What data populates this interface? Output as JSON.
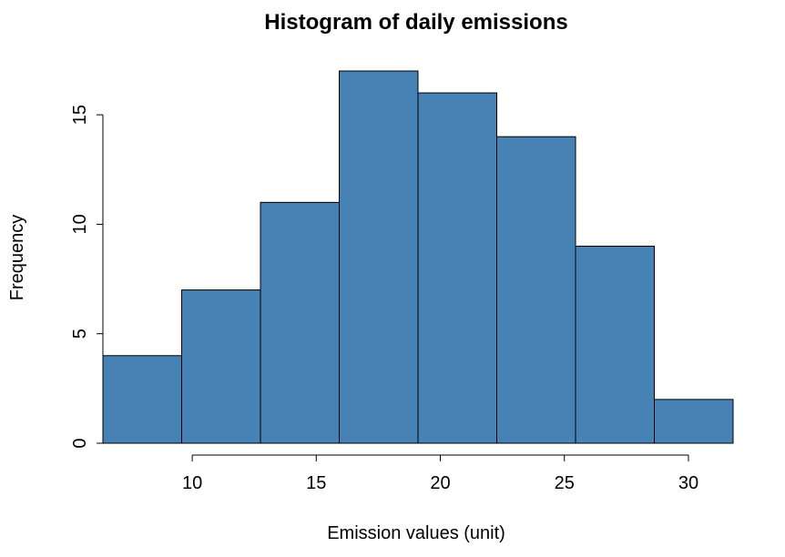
{
  "chart_data": {
    "type": "bar",
    "title": "Histogram of daily emissions",
    "xlabel": "Emission values (unit)",
    "ylabel": "Frequency",
    "bin_edges": [
      6.4,
      9.575,
      12.75,
      15.925,
      19.1,
      22.275,
      25.45,
      28.625,
      31.8
    ],
    "values": [
      4,
      7,
      11,
      17,
      16,
      14,
      9,
      2
    ],
    "xlim": [
      6.4,
      31.8
    ],
    "ylim": [
      0,
      17
    ],
    "xticks": [
      10,
      15,
      20,
      25,
      30
    ],
    "yticks": [
      0,
      5,
      10,
      15
    ],
    "grid": false,
    "bar_color": "#4682b4"
  }
}
